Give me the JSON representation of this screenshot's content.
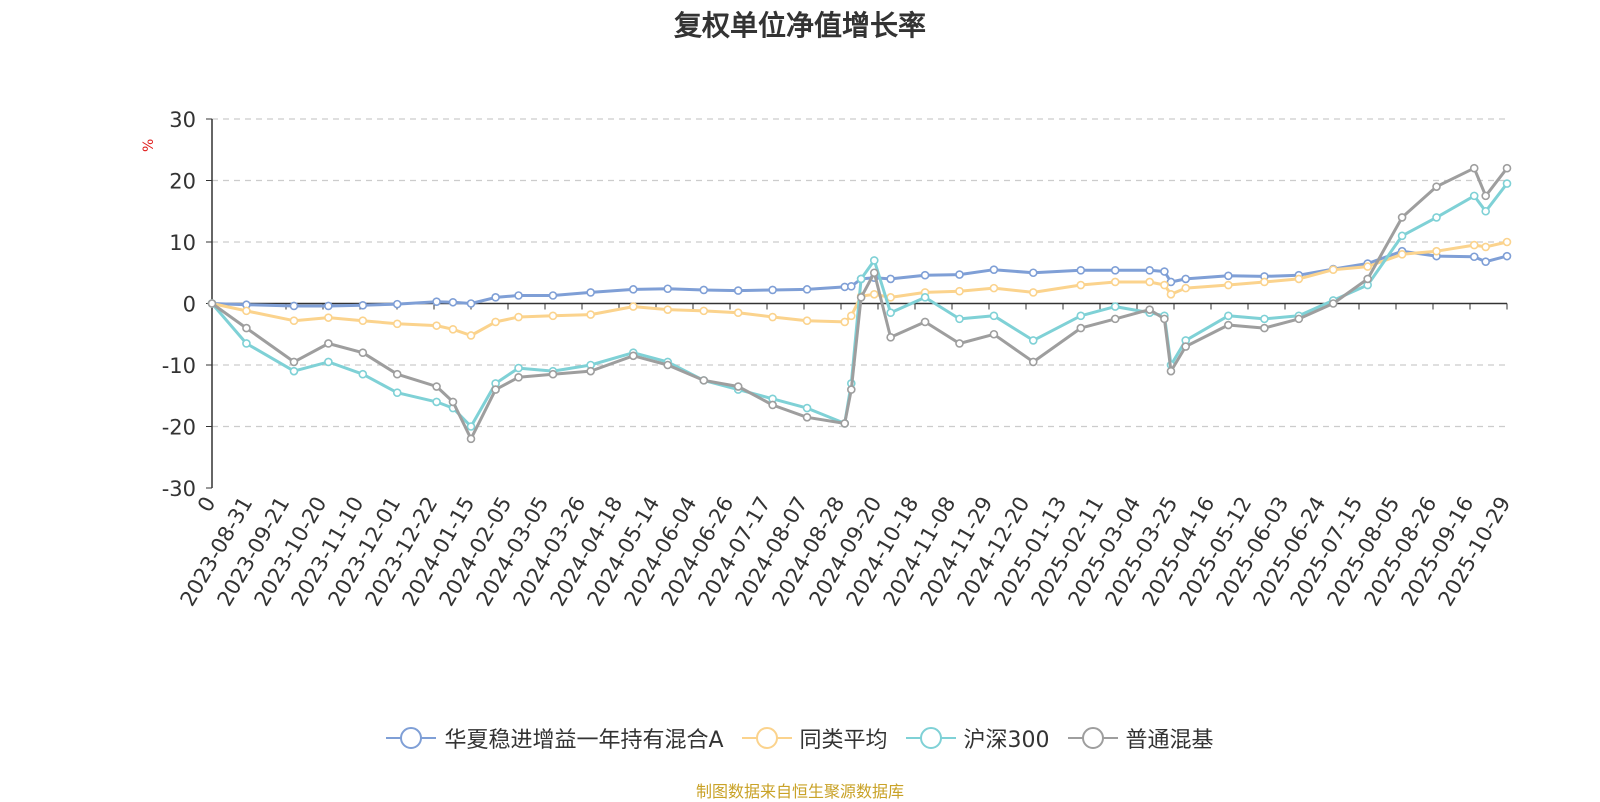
{
  "chart_data": {
    "type": "line",
    "title": "复权单位净值增长率",
    "ylabel": "%",
    "ylim": [
      -30,
      30
    ],
    "yticks": [
      -30,
      -20,
      -10,
      0,
      10,
      20,
      30
    ],
    "grid": true,
    "legend_position": "bottom",
    "x_origin_label": "0",
    "x_tick_labels": [
      "2023-08-31",
      "2023-09-21",
      "2023-10-20",
      "2023-11-10",
      "2023-12-01",
      "2023-12-22",
      "2024-01-15",
      "2024-02-05",
      "2024-03-05",
      "2024-03-26",
      "2024-04-18",
      "2024-05-14",
      "2024-06-04",
      "2024-06-26",
      "2024-07-17",
      "2024-08-07",
      "2024-08-28",
      "2024-09-20",
      "2024-10-18",
      "2024-11-08",
      "2024-11-29",
      "2024-12-20",
      "2025-01-13",
      "2025-02-11",
      "2025-03-04",
      "2025-03-25",
      "2025-04-16",
      "2025-05-12",
      "2025-06-03",
      "2025-06-24",
      "2025-07-15",
      "2025-08-05",
      "2025-08-26",
      "2025-09-16",
      "2025-10-29"
    ],
    "x": [
      "2023-08-31",
      "2023-09-21",
      "2023-10-20",
      "2023-11-10",
      "2023-12-01",
      "2023-12-22",
      "2024-01-15",
      "2024-01-25",
      "2024-02-05",
      "2024-02-20",
      "2024-03-05",
      "2024-03-26",
      "2024-04-18",
      "2024-05-14",
      "2024-06-04",
      "2024-06-26",
      "2024-07-17",
      "2024-08-07",
      "2024-08-28",
      "2024-09-20",
      "2024-09-24",
      "2024-09-30",
      "2024-10-08",
      "2024-10-18",
      "2024-11-08",
      "2024-11-29",
      "2024-12-20",
      "2025-01-13",
      "2025-02-11",
      "2025-03-04",
      "2025-03-25",
      "2025-04-03",
      "2025-04-07",
      "2025-04-16",
      "2025-05-12",
      "2025-06-03",
      "2025-06-24",
      "2025-07-15",
      "2025-08-05",
      "2025-08-26",
      "2025-09-16",
      "2025-10-09",
      "2025-10-16",
      "2025-10-29"
    ],
    "series": [
      {
        "name": "华夏稳进增益一年持有混合A",
        "color": "#7f9fd6",
        "values": [
          0,
          -0.2,
          -0.4,
          -0.4,
          -0.3,
          -0.1,
          0.3,
          0.2,
          0,
          1.0,
          1.3,
          1.3,
          1.8,
          2.3,
          2.4,
          2.2,
          2.1,
          2.2,
          2.3,
          2.7,
          2.8,
          4.0,
          4.2,
          4.0,
          4.6,
          4.7,
          5.5,
          5.0,
          5.4,
          5.4,
          5.4,
          5.2,
          3.5,
          4.0,
          4.5,
          4.4,
          4.6,
          5.6,
          6.5,
          8.5,
          7.7,
          7.6,
          6.8,
          7.7
        ]
      },
      {
        "name": "同类平均",
        "color": "#fbd38d",
        "values": [
          0,
          -1.2,
          -2.8,
          -2.3,
          -2.8,
          -3.3,
          -3.6,
          -4.2,
          -5.2,
          -3.0,
          -2.2,
          -2.0,
          -1.8,
          -0.5,
          -1.0,
          -1.2,
          -1.5,
          -2.2,
          -2.8,
          -3.0,
          -2.0,
          1.2,
          1.5,
          1.0,
          1.8,
          2.0,
          2.5,
          1.8,
          3.0,
          3.5,
          3.5,
          3.0,
          1.5,
          2.5,
          3.0,
          3.5,
          4.0,
          5.5,
          6.0,
          8.0,
          8.5,
          9.5,
          9.2,
          10.0
        ]
      },
      {
        "name": "沪深300",
        "color": "#7fd1d6",
        "values": [
          0,
          -6.5,
          -11.0,
          -9.5,
          -11.5,
          -14.5,
          -16.0,
          -17.0,
          -20.0,
          -13.0,
          -10.5,
          -11.0,
          -10.0,
          -8.0,
          -9.5,
          -12.5,
          -14.0,
          -15.5,
          -17.0,
          -19.5,
          -13.0,
          4.0,
          7.0,
          -1.5,
          1.0,
          -2.5,
          -2.0,
          -6.0,
          -2.0,
          -0.5,
          -1.5,
          -2.0,
          -10.0,
          -6.0,
          -2.0,
          -2.5,
          -2.0,
          0.5,
          3.0,
          11.0,
          14.0,
          17.5,
          15.0,
          19.5
        ]
      },
      {
        "name": "普通混基",
        "color": "#9e9e9e",
        "values": [
          0,
          -4.0,
          -9.5,
          -6.5,
          -8.0,
          -11.5,
          -13.5,
          -16.0,
          -22.0,
          -14.0,
          -12.0,
          -11.5,
          -11.0,
          -8.5,
          -10.0,
          -12.5,
          -13.5,
          -16.5,
          -18.5,
          -19.5,
          -14.0,
          1.0,
          5.0,
          -5.5,
          -3.0,
          -6.5,
          -5.0,
          -9.5,
          -4.0,
          -2.5,
          -1.0,
          -2.5,
          -11.0,
          -7.0,
          -3.5,
          -4.0,
          -2.5,
          0,
          4.0,
          14.0,
          19.0,
          22.0,
          17.5,
          22.0
        ]
      }
    ]
  },
  "source_note": "制图数据来自恒生聚源数据库"
}
